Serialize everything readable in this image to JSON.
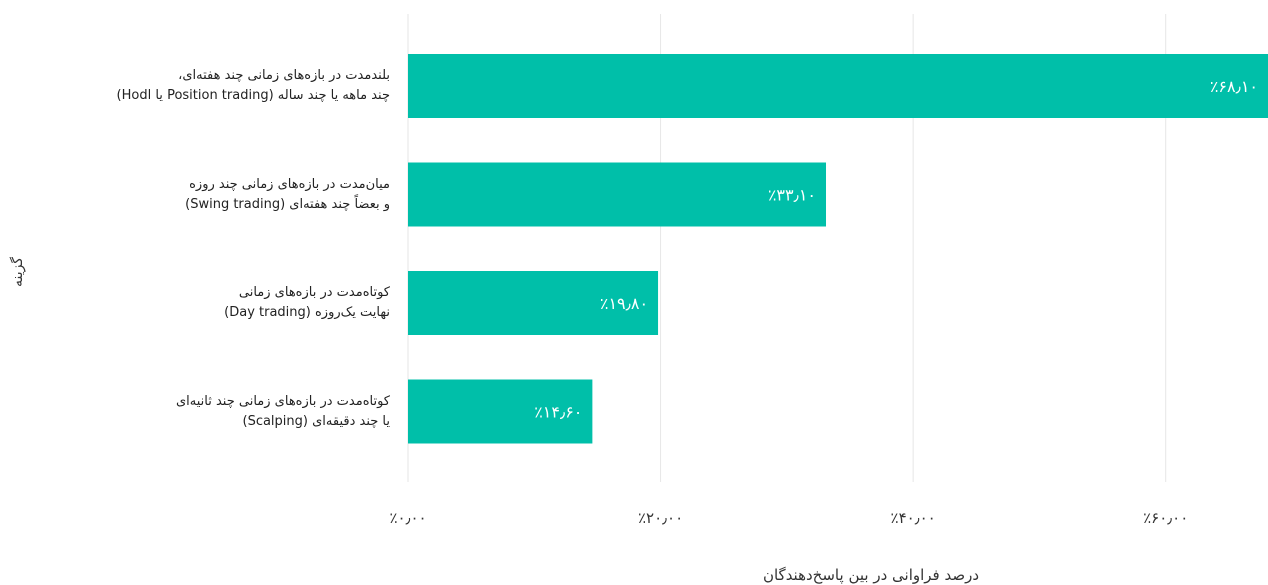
{
  "chart_data": {
    "type": "bar",
    "orientation": "horizontal",
    "categories": [
      [
        "بلندمدت در بازه‌های زمانی چند هفته‌ای،",
        "چند ماهه یا چند ساله (Position trading یا Hodl)"
      ],
      [
        "میان‌مدت در بازه‌های زمانی چند روزه",
        "و بعضاً چند هفته‌ای (Swing trading)"
      ],
      [
        "کوتاه‌مدت در بازه‌های زمانی",
        "نهایت یک‌روزه (Day trading)"
      ],
      [
        "کوتاه‌مدت در بازه‌های زمانی چند ثانیه‌ای",
        "یا چند دقیقه‌ای (Scalping)"
      ]
    ],
    "values": [
      68.1,
      33.1,
      19.8,
      14.6
    ],
    "value_labels": [
      "٪۶۸٫۱۰",
      "٪۳۳٫۱۰",
      "٪۱۹٫۸۰",
      "٪۱۴٫۶۰"
    ],
    "xticks": [
      0,
      20,
      40,
      60
    ],
    "xtick_labels": [
      "٪۰٫۰۰",
      "٪۲۰٫۰۰",
      "٪۴۰٫۰۰",
      "٪۶۰٫۰۰"
    ],
    "xlim": [
      0,
      68.1
    ],
    "xlabel": "درصد فراوانی در بین پاسخ‌دهندگان",
    "ylabel": "گزینه",
    "grid": true,
    "colors": {
      "bar": "#00bfa9",
      "grid": "#e6e6e6",
      "label_text": "#ffffff"
    }
  }
}
